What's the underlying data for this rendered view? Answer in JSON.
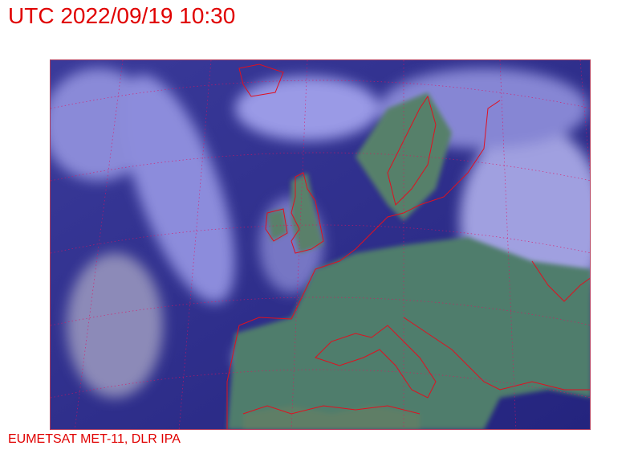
{
  "title": "UTC 2022/09/19 10:30",
  "credit": "EUMETSAT MET-11, DLR IPA",
  "map": {
    "type": "satellite-image",
    "region": "Europe",
    "colors": {
      "ocean": "#2a2a8a",
      "cloud": "#9a9ae8",
      "land": "#4a7a6a",
      "coastline": "#e01020",
      "text": "#e00000"
    }
  }
}
